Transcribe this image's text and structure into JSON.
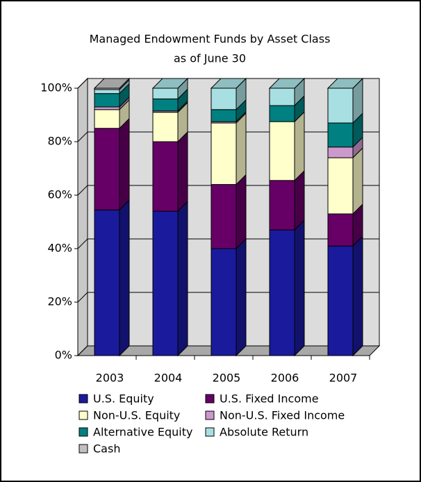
{
  "chart_data": {
    "type": "stacked_bar_3d",
    "title": [
      "Managed Endowment Funds by Asset Class",
      "as of June 30"
    ],
    "categories": [
      "2003",
      "2004",
      "2005",
      "2006",
      "2007"
    ],
    "series": [
      {
        "name": "U.S. Equity",
        "color": "#1a1a9c",
        "values": [
          54.5,
          54,
          40,
          47,
          41
        ]
      },
      {
        "name": "U.S. Fixed Income",
        "color": "#660066",
        "values": [
          30.5,
          26,
          24,
          18.5,
          12
        ]
      },
      {
        "name": "Non-U.S. Equity",
        "color": "#ffffcc",
        "values": [
          7,
          11,
          23,
          22,
          21
        ]
      },
      {
        "name": "Non-U.S. Fixed Income",
        "color": "#cc99cc",
        "values": [
          1,
          0.5,
          0.5,
          0,
          4
        ]
      },
      {
        "name": "Alternative Equity",
        "color": "#008080",
        "values": [
          5,
          4.5,
          4.5,
          6,
          9
        ]
      },
      {
        "name": "Absolute Return",
        "color": "#a8dfe2",
        "values": [
          1.5,
          4,
          8,
          6.5,
          13
        ]
      },
      {
        "name": "Cash",
        "color": "#c0c0c0",
        "values": [
          0.5,
          0,
          0,
          0,
          0
        ]
      }
    ],
    "ylim": [
      0,
      100
    ],
    "yticks": [
      {
        "value": 0,
        "label": "0%"
      },
      {
        "value": 20,
        "label": "20%"
      },
      {
        "value": 40,
        "label": "40%"
      },
      {
        "value": 60,
        "label": "60%"
      },
      {
        "value": 80,
        "label": "80%"
      },
      {
        "value": 100,
        "label": "100%"
      }
    ],
    "grid": true
  }
}
